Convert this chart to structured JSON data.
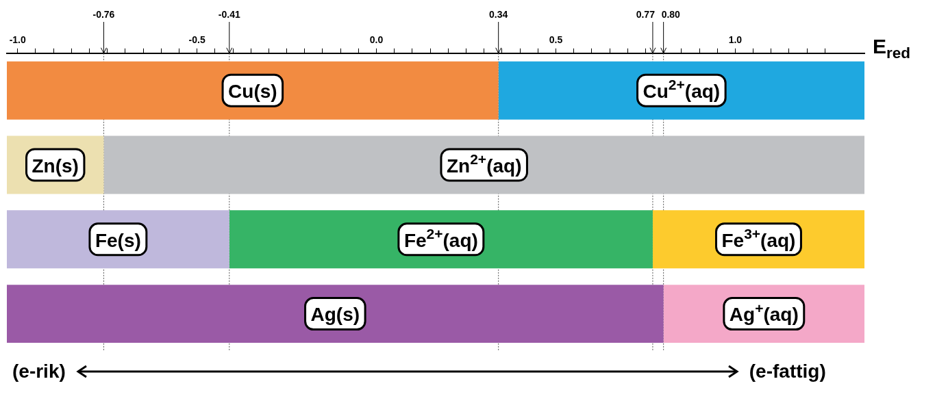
{
  "chart_data": {
    "type": "bar",
    "orientation": "horizontal",
    "xlabel": "E$_{red}$",
    "categories": [
      null,
      null,
      null,
      null
    ],
    "tick_labels": "x",
    "legend": false,
    "grid": false,
    "xlim": [
      -1.03,
      1.36
    ],
    "xticks": [
      {
        "value": -1.0,
        "label": "-1.0"
      },
      {
        "value": -0.95,
        "label": null
      },
      {
        "value": -0.9,
        "label": null
      },
      {
        "value": -0.85,
        "label": null
      },
      {
        "value": -0.8,
        "label": null
      },
      {
        "value": -0.75,
        "label": null
      },
      {
        "value": -0.7,
        "label": null
      },
      {
        "value": -0.65,
        "label": null
      },
      {
        "value": -0.6,
        "label": null
      },
      {
        "value": -0.55,
        "label": null
      },
      {
        "value": -0.5,
        "label": "-0.5"
      },
      {
        "value": -0.45,
        "label": null
      },
      {
        "value": -0.4,
        "label": null
      },
      {
        "value": -0.35,
        "label": null
      },
      {
        "value": -0.3,
        "label": null
      },
      {
        "value": -0.25,
        "label": null
      },
      {
        "value": -0.2,
        "label": null
      },
      {
        "value": -0.15,
        "label": null
      },
      {
        "value": -0.1,
        "label": null
      },
      {
        "value": -0.05,
        "label": null
      },
      {
        "value": 0,
        "label": "0.0"
      },
      {
        "value": 0.05,
        "label": null
      },
      {
        "value": 0.1,
        "label": null
      },
      {
        "value": 0.15,
        "label": null
      },
      {
        "value": 0.2,
        "label": null
      },
      {
        "value": 0.25,
        "label": null
      },
      {
        "value": 0.3,
        "label": null
      },
      {
        "value": 0.35,
        "label": null
      },
      {
        "value": 0.4,
        "label": null
      },
      {
        "value": 0.45,
        "label": null
      },
      {
        "value": 0.5,
        "label": "0.5"
      },
      {
        "value": 0.55,
        "label": null
      },
      {
        "value": 0.6,
        "label": null
      },
      {
        "value": 0.65,
        "label": null
      },
      {
        "value": 0.7,
        "label": null
      },
      {
        "value": 0.75,
        "label": null
      },
      {
        "value": 0.8,
        "label": null
      },
      {
        "value": 0.85,
        "label": null
      },
      {
        "value": 0.9,
        "label": null
      },
      {
        "value": 0.95,
        "label": null
      },
      {
        "value": 1.0,
        "label": "1.0"
      },
      {
        "value": 1.05,
        "label": null
      },
      {
        "value": 1.1,
        "label": null
      },
      {
        "value": 1.15,
        "label": null
      },
      {
        "value": 1.2,
        "label": null
      },
      {
        "value": 1.25,
        "label": null
      }
    ],
    "series": [
      {
        "name": "Cu(s)",
        "color": "#f28b41",
        "values": [
          1.37,
          null,
          null,
          null
        ],
        "base": [
          -1.03,
          null,
          null,
          null
        ]
      },
      {
        "name": "Cu$^{2+}$(aq)",
        "color": "#1fa8e0",
        "values": [
          1.02,
          null,
          null,
          null
        ],
        "base": [
          0.34,
          null,
          null,
          null
        ]
      },
      {
        "name": "Zn(s)",
        "color": "#ece0b0",
        "values": [
          null,
          0.27,
          null,
          null
        ],
        "base": [
          null,
          -1.03,
          null,
          null
        ]
      },
      {
        "name": "Zn$^{2+}$(aq)",
        "color": "#bfc1c4",
        "values": [
          null,
          2.12,
          null,
          null
        ],
        "base": [
          null,
          -0.76,
          null,
          null
        ]
      },
      {
        "name": "Fe(s)",
        "color": "#bfb8dc",
        "values": [
          null,
          null,
          0.62,
          null
        ],
        "base": [
          null,
          null,
          -1.03,
          null
        ]
      },
      {
        "name": "Fe$^{2+}$(aq)",
        "color": "#36b466",
        "values": [
          null,
          null,
          1.18,
          null
        ],
        "base": [
          null,
          null,
          -0.41,
          null
        ]
      },
      {
        "name": "Fe$^{3+}$(aq)",
        "color": "#fdcb2d",
        "values": [
          null,
          null,
          0.59,
          null
        ],
        "base": [
          null,
          null,
          0.77,
          null
        ]
      },
      {
        "name": "Ag(s)",
        "color": "#9a5aa6",
        "values": [
          null,
          null,
          null,
          1.83
        ],
        "base": [
          null,
          null,
          null,
          -1.03
        ]
      },
      {
        "name": "Ag$^{+}$(aq)",
        "color": "#f4a8c8",
        "values": [
          null,
          null,
          null,
          0.56
        ],
        "base": [
          null,
          null,
          null,
          0.8
        ]
      }
    ],
    "ref_lines": [
      {
        "axis": "x",
        "value": -0.76,
        "label": "-0.76"
      },
      {
        "axis": "x",
        "value": -0.41,
        "label": "-0.41"
      },
      {
        "axis": "x",
        "value": 0.34,
        "label": "0.34"
      },
      {
        "axis": "x",
        "value": 0.77,
        "label": "0.77"
      },
      {
        "axis": "x",
        "value": 0.8,
        "label": "0.80"
      }
    ],
    "annotations": [
      "(e-rik)",
      "(e-fattig)"
    ]
  }
}
